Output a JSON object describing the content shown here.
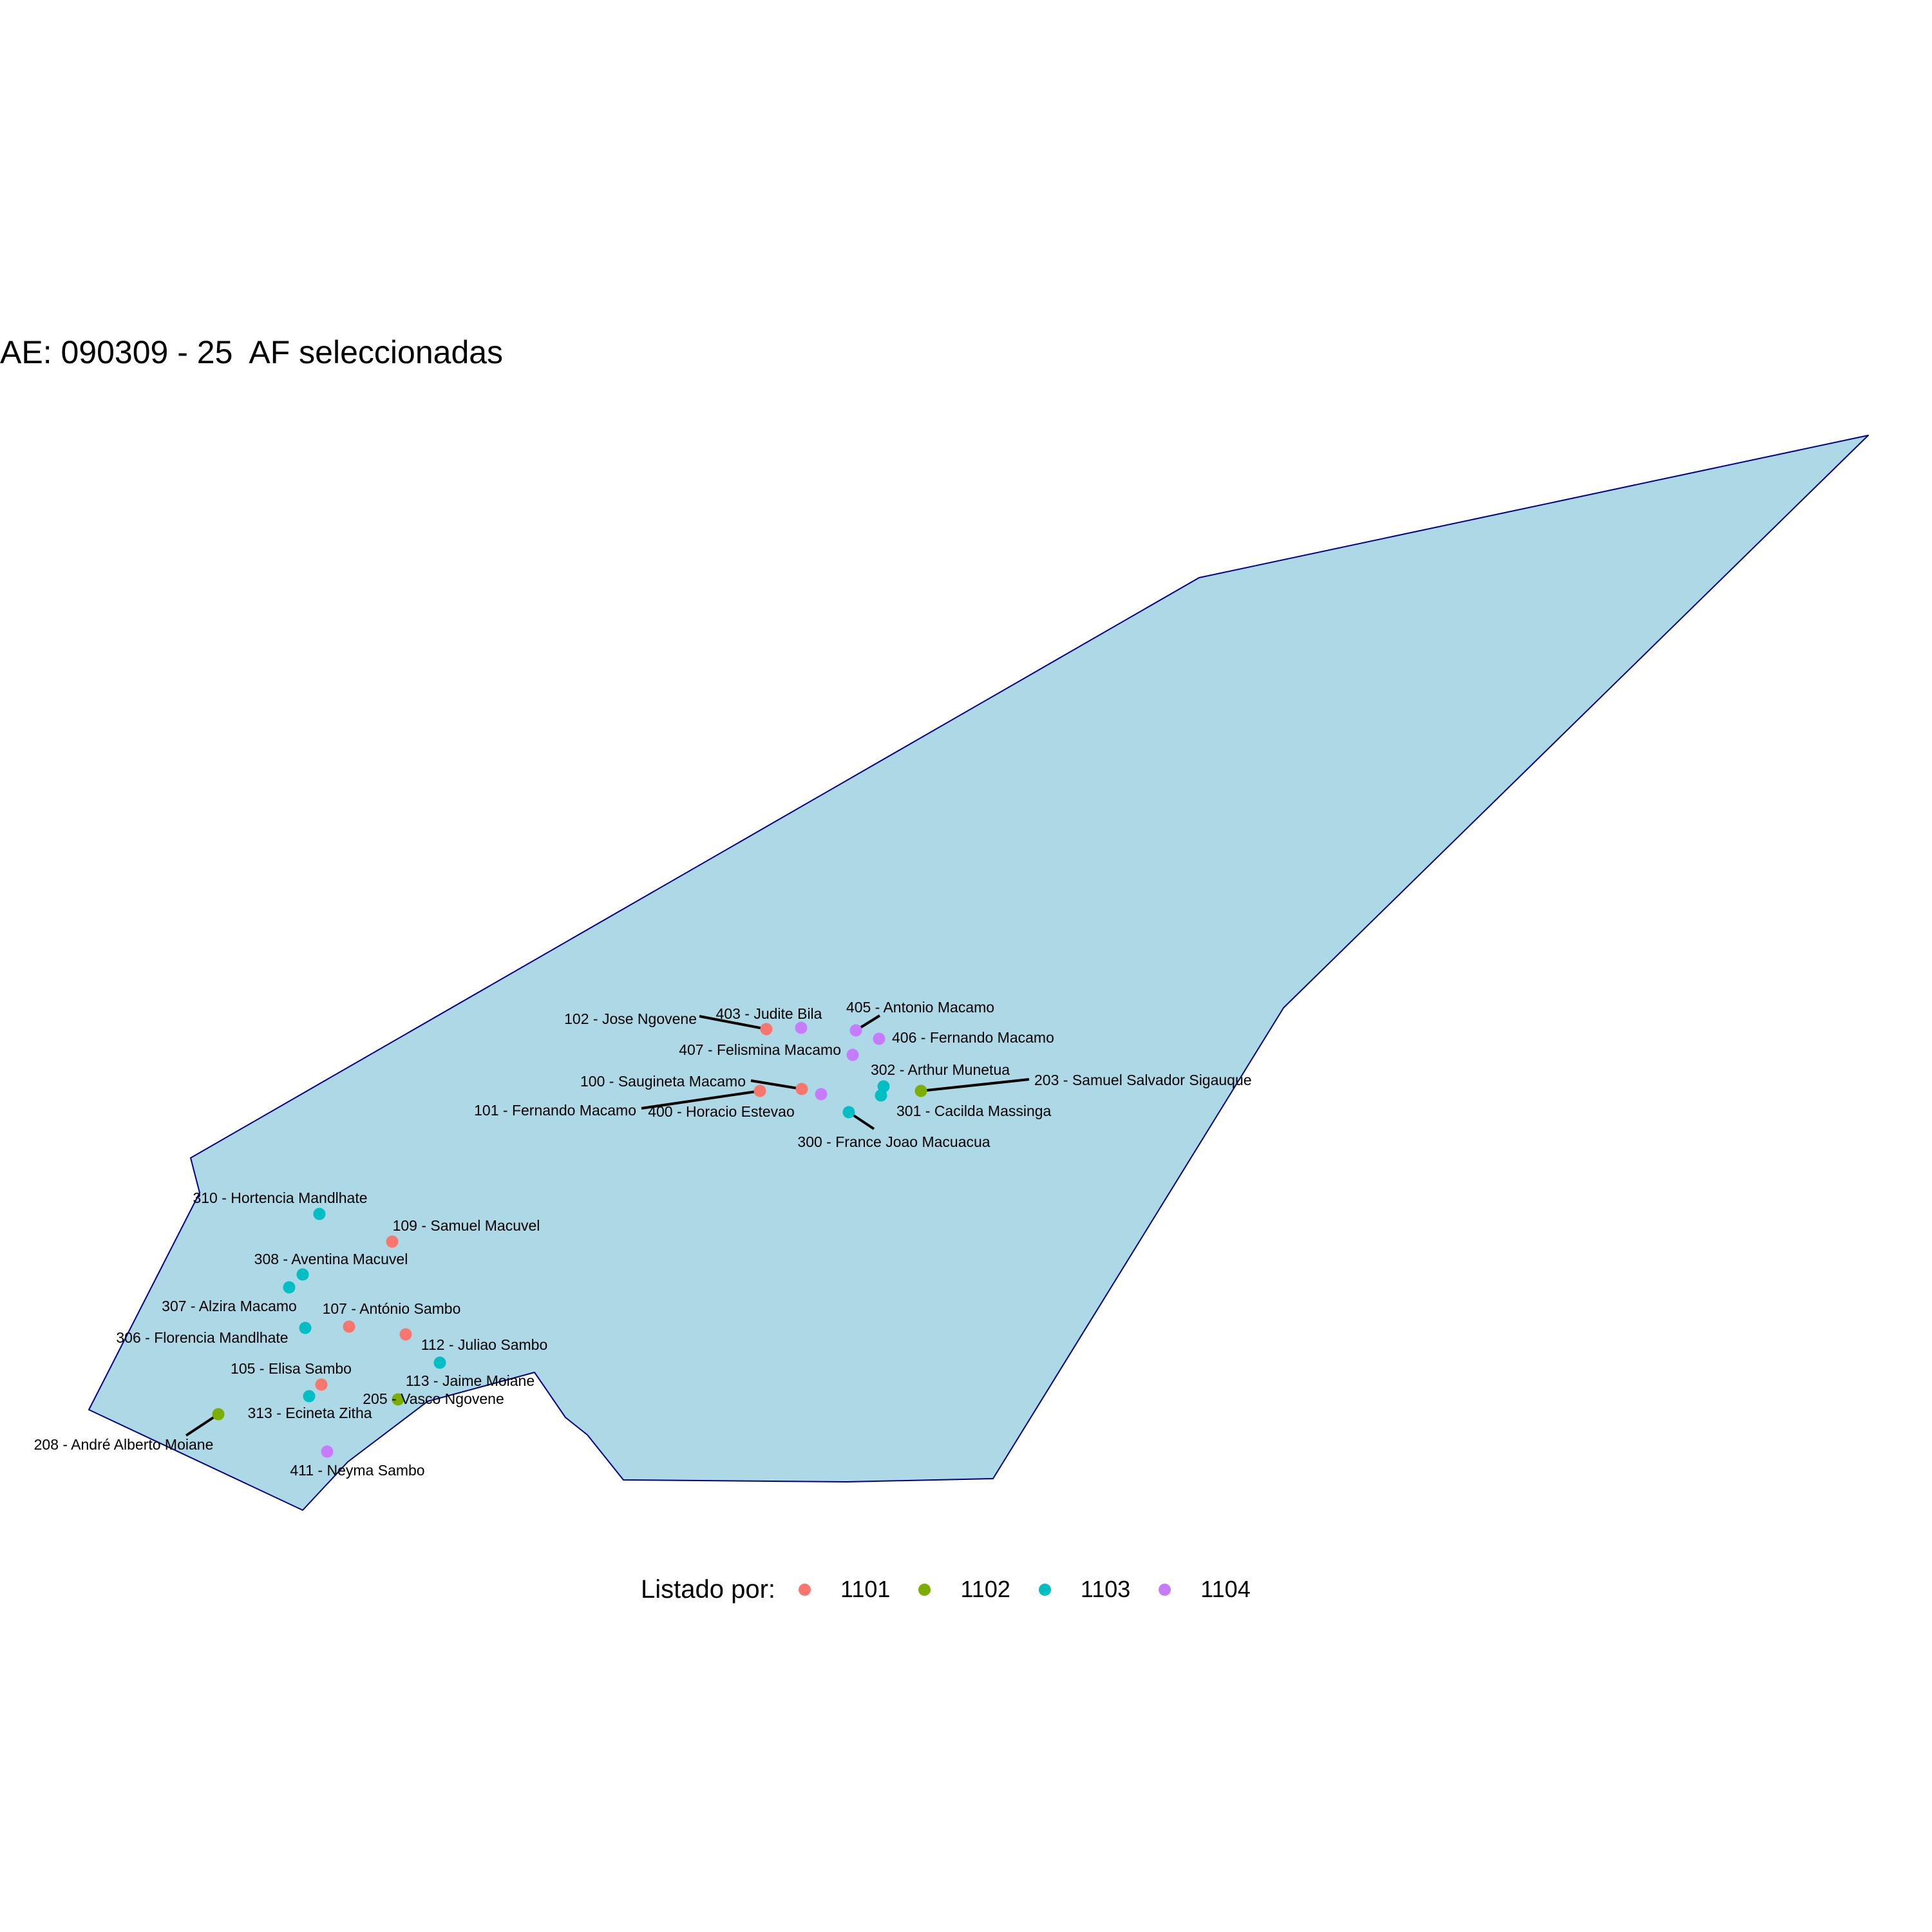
{
  "title": "AE: 090309 - 25  AF seleccionadas",
  "map": {
    "area_fill": "#add8e6",
    "area_border": "#00008b"
  },
  "legend": {
    "title": "Listado por:",
    "items": [
      {
        "label": "1101",
        "color": "#f8766d"
      },
      {
        "label": "1102",
        "color": "#7cae00"
      },
      {
        "label": "1103",
        "color": "#00bfc4"
      },
      {
        "label": "1104",
        "color": "#c77cff"
      }
    ]
  },
  "households": [
    {
      "label": "102 - Jose  Ngovene",
      "group": "1101"
    },
    {
      "label": "403 - Judite Bila",
      "group": "1104"
    },
    {
      "label": "405 - Antonio Macamo",
      "group": "1104"
    },
    {
      "label": "406 - Fernando Macamo",
      "group": "1104"
    },
    {
      "label": "407 - Felismina Macamo",
      "group": "1104"
    },
    {
      "label": "302 - Arthur Munetua",
      "group": "1103"
    },
    {
      "label": "100 - Saugineta Macamo",
      "group": "1101"
    },
    {
      "label": "203 - Samuel Salvador Sigauque",
      "group": "1102"
    },
    {
      "label": "101 - Fernando Macamo",
      "group": "1101"
    },
    {
      "label": "400 - Horacio Estevao",
      "group": "1104"
    },
    {
      "label": "301 - Cacilda Massinga",
      "group": "1103"
    },
    {
      "label": "300 - France Joao Macuacua",
      "group": "1103"
    },
    {
      "label": "310 - Hortencia Mandlhate",
      "group": "1103"
    },
    {
      "label": "109 - Samuel Macuvel",
      "group": "1101"
    },
    {
      "label": "308 - Aventina Macuvel",
      "group": "1103"
    },
    {
      "label": "307 - Alzira Macamo",
      "group": "1103"
    },
    {
      "label": "107 - António Sambo",
      "group": "1101"
    },
    {
      "label": "306 - Florencia Mandlhate",
      "group": "1103"
    },
    {
      "label": "112 - Juliao Sambo",
      "group": "1101"
    },
    {
      "label": "105 - Elisa Sambo",
      "group": "1101"
    },
    {
      "label": "113 - Jaime Moiane",
      "group": "1103"
    },
    {
      "label": "205 - Vasco Ngovene",
      "group": "1102"
    },
    {
      "label": "313 - Ecineta Zitha",
      "group": "1103"
    },
    {
      "label": "208 - André Alberto Moiane",
      "group": "1102"
    },
    {
      "label": "411 - Neyma Sambo",
      "group": "1104"
    }
  ]
}
